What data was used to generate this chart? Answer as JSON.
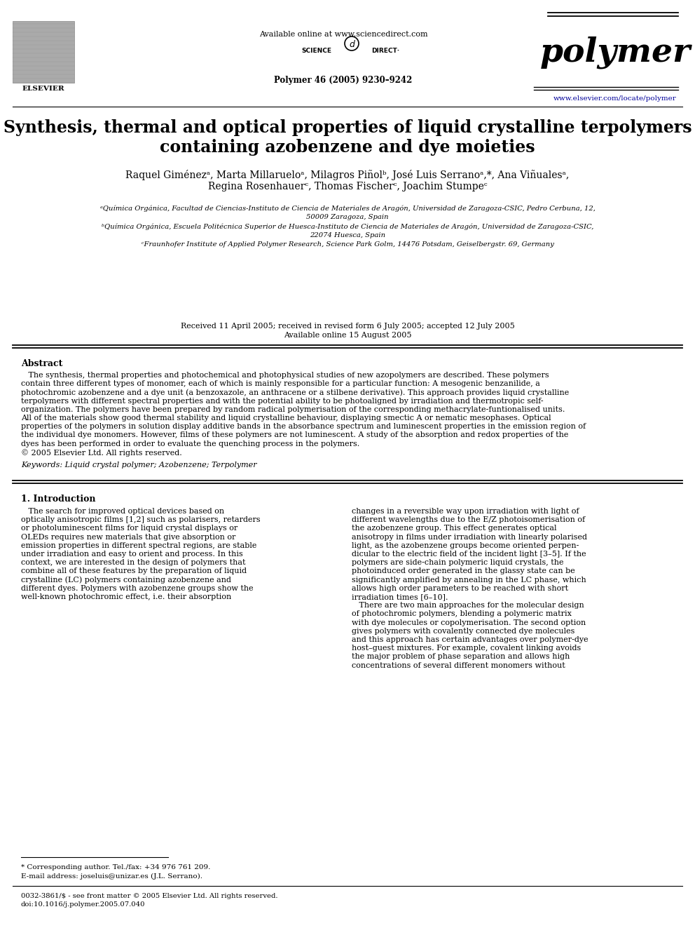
{
  "background_color": "#ffffff",
  "header": {
    "available_online": "Available online at www.sciencedirect.com",
    "journal_name": "polymer",
    "journal_info": "Polymer 46 (2005) 9230–9242",
    "journal_url": "www.elsevier.com/locate/polymer",
    "elsevier_label": "ELSEVIER"
  },
  "title": "Synthesis, thermal and optical properties of liquid crystalline terpolymers\ncontaining azobenzene and dye moieties",
  "authors": "Raquel Giménezᵃ, Marta Millarueloᵃ, Milagros Piñolᵇ, José Luis Serranoᵃ,*, Ana Viñualesᵃ,\nRegina Rosenhauerᶜ, Thomas Fischerᶜ, Joachim Stumpeᶜ",
  "affiliations": [
    "ᵃQuímica Orgánica, Facultad de Ciencias-Instituto de Ciencia de Materiales de Aragón, Universidad de Zaragoza-CSIC, Pedro Cerbuna, 12,",
    "50009 Zaragoza, Spain",
    "ᵇQuímica Orgánica, Escuela Politécnica Superior de Huesca-Instituto de Ciencia de Materiales de Aragón, Universidad de Zaragoza-CSIC,",
    "22074 Huesca, Spain",
    "ᶜFraunhofer Institute of Applied Polymer Research, Science Park Golm, 14476 Potsdam, Geiselbergstr. 69, Germany"
  ],
  "received": "Received 11 April 2005; received in revised form 6 July 2005; accepted 12 July 2005",
  "available_online2": "Available online 15 August 2005",
  "abstract_title": "Abstract",
  "abstract_lines": [
    "   The synthesis, thermal properties and photochemical and photophysical studies of new azopolymers are described. These polymers",
    "contain three different types of monomer, each of which is mainly responsible for a particular function: A mesogenic benzanilide, a",
    "photochromic azobenzene and a dye unit (a benzoxazole, an anthracene or a stilbene derivative). This approach provides liquid crystalline",
    "terpolymers with different spectral properties and with the potential ability to be photoaligned by irradiation and thermotropic self-",
    "organization. The polymers have been prepared by random radical polymerisation of the corresponding methacrylate-funtionalised units.",
    "All of the materials show good thermal stability and liquid crystalline behaviour, displaying smectic A or nematic mesophases. Optical",
    "properties of the polymers in solution display additive bands in the absorbance spectrum and luminescent properties in the emission region of",
    "the individual dye monomers. However, films of these polymers are not luminescent. A study of the absorption and redox properties of the",
    "dyes has been performed in order to evaluate the quenching process in the polymers.",
    "© 2005 Elsevier Ltd. All rights reserved."
  ],
  "keywords": "Keywords: Liquid crystal polymer; Azobenzene; Terpolymer",
  "section1_title": "1. Introduction",
  "left_col_lines": [
    "   The search for improved optical devices based on",
    "optically anisotropic films [1,2] such as polarisers, retarders",
    "or photoluminescent films for liquid crystal displays or",
    "OLEDs requires new materials that give absorption or",
    "emission properties in different spectral regions, are stable",
    "under irradiation and easy to orient and process. In this",
    "context, we are interested in the design of polymers that",
    "combine all of these features by the preparation of liquid",
    "crystalline (LC) polymers containing azobenzene and",
    "different dyes. Polymers with azobenzene groups show the",
    "well-known photochromic effect, i.e. their absorption"
  ],
  "right_col_lines": [
    "changes in a reversible way upon irradiation with light of",
    "different wavelengths due to the E/Z photoisomerisation of",
    "the azobenzene group. This effect generates optical",
    "anisotropy in films under irradiation with linearly polarised",
    "light, as the azobenzene groups become oriented perpen-",
    "dicular to the electric field of the incident light [3–5]. If the",
    "polymers are side-chain polymeric liquid crystals, the",
    "photoinduced order generated in the glassy state can be",
    "significantly amplified by annealing in the LC phase, which",
    "allows high order parameters to be reached with short",
    "irradiation times [6–10].",
    "   There are two main approaches for the molecular design",
    "of photochromic polymers, blending a polymeric matrix",
    "with dye molecules or copolymerisation. The second option",
    "gives polymers with covalently connected dye molecules",
    "and this approach has certain advantages over polymer-dye",
    "host–guest mixtures. For example, covalent linking avoids",
    "the major problem of phase separation and allows high",
    "concentrations of several different monomers without"
  ],
  "footnote_corresponding": "* Corresponding author. Tel./fax: +34 976 761 209.",
  "footnote_email": "E-mail address: joseluis@unizar.es (J.L. Serrano).",
  "footnote_issn": "0032-3861/$ - see front matter © 2005 Elsevier Ltd. All rights reserved.",
  "footnote_doi": "doi:10.1016/j.polymer.2005.07.040"
}
